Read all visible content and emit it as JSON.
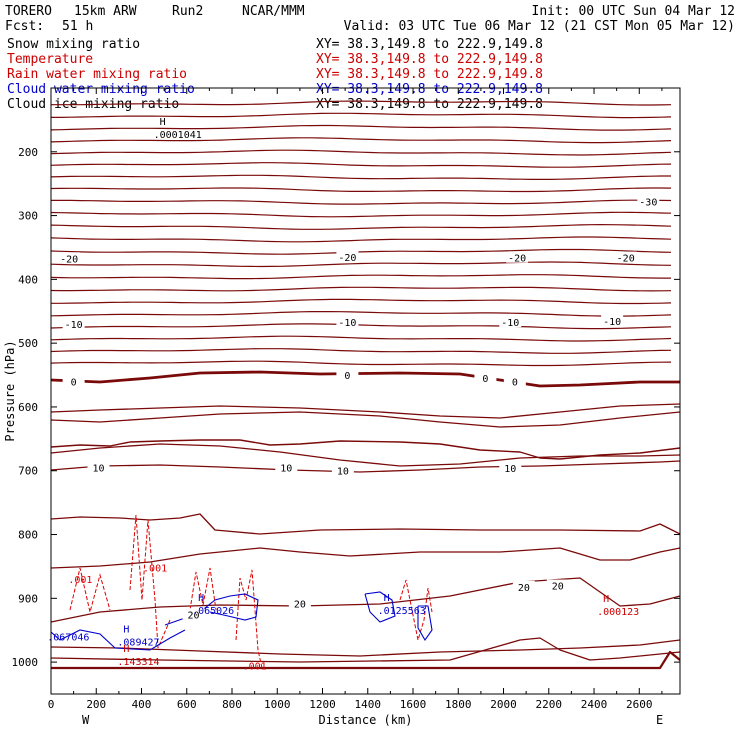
{
  "header": {
    "model": "TORERO",
    "grid": "15km ARW",
    "run": "Run2",
    "org": "NCAR/MMM",
    "init": "Init: 00 UTC Sun 04 Mar 12",
    "fcst_label": "Fcst:",
    "fcst_value": "51 h",
    "valid": "Valid: 03 UTC Tue 06 Mar 12 (21 CST Mon 05 Mar 12)"
  },
  "legend": [
    {
      "name": "Snow mixing ratio",
      "xy": "XY=  38.3,149.8 to 222.9,149.8",
      "color": "#000000"
    },
    {
      "name": "Temperature",
      "xy": "XY=  38.3,149.8 to 222.9,149.8",
      "color": "#cc0000"
    },
    {
      "name": "Rain water mixing ratio",
      "xy": "XY=  38.3,149.8 to 222.9,149.8",
      "color": "#cc0000"
    },
    {
      "name": "Cloud water mixing ratio",
      "xy": "XY=  38.3,149.8 to 222.9,149.8",
      "color": "#0000cc"
    },
    {
      "name": "Cloud ice mixing ratio",
      "xy": "XY=  38.3,149.8 to 222.9,149.8",
      "color": "#000000"
    }
  ],
  "chart_data": {
    "type": "cross-section",
    "xlabel": "Distance (km)",
    "ylabel": "Pressure (hPa)",
    "x_range": [
      0,
      2780
    ],
    "y_range": [
      100,
      1050
    ],
    "x_ticks": [
      0,
      200,
      400,
      600,
      800,
      1000,
      1200,
      1400,
      1600,
      1800,
      2000,
      2200,
      2400,
      2600
    ],
    "y_ticks": [
      200,
      300,
      400,
      500,
      600,
      700,
      800,
      900,
      1000
    ],
    "x_end_labels": {
      "left": "W",
      "right": "E"
    },
    "temperature_contour_labels": [
      {
        "text": "-30",
        "x": 2640,
        "p": 278
      },
      {
        "text": "-20",
        "x": 80,
        "p": 367
      },
      {
        "text": "-20",
        "x": 1310,
        "p": 365
      },
      {
        "text": "-20",
        "x": 2060,
        "p": 366
      },
      {
        "text": "-20",
        "x": 2540,
        "p": 366
      },
      {
        "text": "-10",
        "x": 100,
        "p": 470
      },
      {
        "text": "-10",
        "x": 1310,
        "p": 467
      },
      {
        "text": "-10",
        "x": 2030,
        "p": 467
      },
      {
        "text": "-10",
        "x": 2480,
        "p": 465
      },
      {
        "text": "0",
        "x": 100,
        "p": 560
      },
      {
        "text": "0",
        "x": 1310,
        "p": 550
      },
      {
        "text": "0",
        "x": 1920,
        "p": 555
      },
      {
        "text": "0",
        "x": 2050,
        "p": 560
      },
      {
        "text": "10",
        "x": 210,
        "p": 695
      },
      {
        "text": "10",
        "x": 1040,
        "p": 695
      },
      {
        "text": "10",
        "x": 1290,
        "p": 700
      },
      {
        "text": "10",
        "x": 2030,
        "p": 696
      },
      {
        "text": "20",
        "x": 630,
        "p": 925
      },
      {
        "text": "20",
        "x": 1100,
        "p": 908
      },
      {
        "text": "20",
        "x": 2090,
        "p": 882
      },
      {
        "text": "20",
        "x": 2240,
        "p": 880
      }
    ],
    "extrema_labels": [
      {
        "mark": "H",
        "value": ".0001041",
        "x": 480,
        "p": 172,
        "color": "#000000"
      },
      {
        "mark": "H",
        "value": ".000123",
        "x": 2440,
        "p": 920,
        "color": "#cc0000"
      },
      {
        "mark": "H",
        "value": ".0125563",
        "x": 1470,
        "p": 918,
        "color": "#0000cc"
      },
      {
        "mark": "H",
        "value": ".089427",
        "x": 320,
        "p": 968,
        "color": "#0000cc"
      },
      {
        "mark": "H",
        "value": ".065026",
        "x": 650,
        "p": 918,
        "color": "#0000cc"
      },
      {
        "mark": "",
        "value": ".067046",
        "x": 10,
        "p": 960,
        "color": "#0000cc"
      },
      {
        "mark": "H",
        "value": ".143314",
        "x": 320,
        "p": 998,
        "color": "#cc0000"
      }
    ],
    "rain_labels": [
      {
        "text": ".001",
        "x": 130,
        "p": 870
      },
      {
        "text": ".001",
        "x": 460,
        "p": 852
      },
      {
        "text": ".001",
        "x": 900,
        "p": 1005
      }
    ]
  }
}
